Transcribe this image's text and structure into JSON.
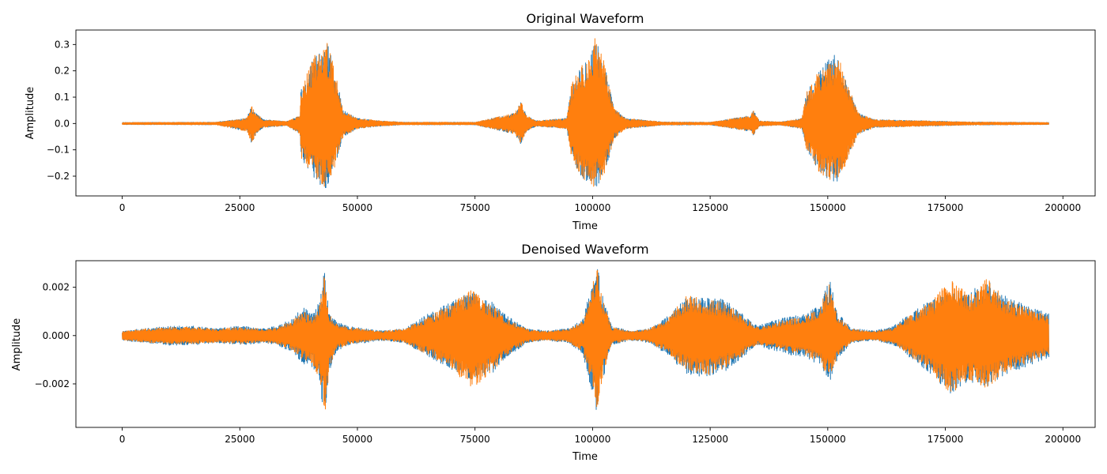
{
  "chart_data": [
    {
      "type": "line",
      "title": "Original Waveform",
      "xlabel": "Time",
      "ylabel": "Amplitude",
      "xlim": [
        -9850,
        206850
      ],
      "ylim": [
        -0.275,
        0.355
      ],
      "xticks": [
        0,
        25000,
        50000,
        75000,
        100000,
        125000,
        150000,
        175000,
        200000
      ],
      "xtick_labels": [
        "0",
        "25000",
        "50000",
        "75000",
        "100000",
        "125000",
        "150000",
        "175000",
        "200000"
      ],
      "yticks": [
        -0.2,
        -0.1,
        0.0,
        0.1,
        0.2,
        0.3
      ],
      "ytick_labels": [
        "−0.2",
        "−0.1",
        "0.0",
        "0.1",
        "0.2",
        "0.3"
      ],
      "grid": false,
      "x_range": [
        0,
        197000
      ],
      "series": [
        {
          "color": "#1f77b4",
          "envelope": {
            "x": [
              0,
              20000,
              26500,
              27500,
              28500,
              30000,
              35000,
              37800,
              38000,
              40500,
              42500,
              43200,
              45000,
              47000,
              50000,
              55000,
              60000,
              75000,
              83500,
              84800,
              86000,
              88000,
              94500,
              95500,
              97500,
              99500,
              100500,
              102500,
              104500,
              107000,
              115000,
              125000,
              133500,
              134200,
              135500,
              140000,
              144500,
              145500,
              148000,
              150500,
              152000,
              154000,
              156500,
              160000,
              180000,
              197000
            ],
            "upper": [
              0.004,
              0.005,
              0.02,
              0.07,
              0.04,
              0.015,
              0.008,
              0.03,
              0.13,
              0.25,
              0.3,
              0.33,
              0.22,
              0.05,
              0.02,
              0.01,
              0.005,
              0.005,
              0.04,
              0.085,
              0.03,
              0.01,
              0.02,
              0.15,
              0.22,
              0.28,
              0.33,
              0.24,
              0.06,
              0.02,
              0.006,
              0.005,
              0.03,
              0.05,
              0.01,
              0.006,
              0.02,
              0.12,
              0.2,
              0.25,
              0.27,
              0.16,
              0.04,
              0.015,
              0.006,
              0.004
            ],
            "lower": [
              -0.004,
              -0.005,
              -0.03,
              -0.075,
              -0.04,
              -0.015,
              -0.008,
              -0.04,
              -0.13,
              -0.2,
              -0.24,
              -0.25,
              -0.18,
              -0.05,
              -0.02,
              -0.01,
              -0.005,
              -0.005,
              -0.04,
              -0.08,
              -0.03,
              -0.01,
              -0.02,
              -0.13,
              -0.2,
              -0.25,
              -0.25,
              -0.2,
              -0.06,
              -0.02,
              -0.006,
              -0.005,
              -0.03,
              -0.045,
              -0.01,
              -0.006,
              -0.02,
              -0.1,
              -0.18,
              -0.22,
              -0.22,
              -0.15,
              -0.04,
              -0.015,
              -0.006,
              -0.004
            ]
          }
        },
        {
          "color": "#ff7f0e",
          "envelope": {
            "x": [
              0,
              20000,
              26500,
              27500,
              28500,
              30000,
              35000,
              37800,
              38000,
              40500,
              42500,
              43200,
              45000,
              47000,
              50000,
              55000,
              60000,
              75000,
              83500,
              84800,
              86000,
              88000,
              94500,
              95500,
              97500,
              99500,
              100500,
              102500,
              104500,
              107000,
              115000,
              125000,
              133500,
              134200,
              135500,
              140000,
              144500,
              145500,
              148000,
              150500,
              152000,
              154000,
              156500,
              160000,
              180000,
              197000
            ],
            "upper": [
              0.004,
              0.005,
              0.02,
              0.07,
              0.04,
              0.015,
              0.008,
              0.03,
              0.13,
              0.25,
              0.3,
              0.33,
              0.22,
              0.05,
              0.02,
              0.01,
              0.005,
              0.005,
              0.04,
              0.085,
              0.03,
              0.01,
              0.02,
              0.15,
              0.22,
              0.28,
              0.33,
              0.24,
              0.06,
              0.02,
              0.006,
              0.005,
              0.03,
              0.05,
              0.01,
              0.006,
              0.02,
              0.12,
              0.2,
              0.25,
              0.27,
              0.16,
              0.04,
              0.015,
              0.006,
              0.004
            ],
            "lower": [
              -0.004,
              -0.005,
              -0.03,
              -0.075,
              -0.04,
              -0.015,
              -0.008,
              -0.04,
              -0.13,
              -0.2,
              -0.24,
              -0.25,
              -0.18,
              -0.05,
              -0.02,
              -0.01,
              -0.005,
              -0.005,
              -0.04,
              -0.08,
              -0.03,
              -0.01,
              -0.02,
              -0.13,
              -0.2,
              -0.25,
              -0.25,
              -0.2,
              -0.06,
              -0.02,
              -0.006,
              -0.005,
              -0.03,
              -0.045,
              -0.01,
              -0.006,
              -0.02,
              -0.1,
              -0.18,
              -0.22,
              -0.22,
              -0.15,
              -0.04,
              -0.015,
              -0.006,
              -0.004
            ]
          }
        }
      ]
    },
    {
      "type": "line",
      "title": "Denoised Waveform",
      "xlabel": "Time",
      "ylabel": "Amplitude",
      "xlim": [
        -9850,
        206850
      ],
      "ylim": [
        -0.0038,
        0.0031
      ],
      "xticks": [
        0,
        25000,
        50000,
        75000,
        100000,
        125000,
        150000,
        175000,
        200000
      ],
      "xtick_labels": [
        "0",
        "25000",
        "50000",
        "75000",
        "100000",
        "125000",
        "150000",
        "175000",
        "200000"
      ],
      "yticks": [
        -0.002,
        0.0,
        0.002
      ],
      "ytick_labels": [
        "−0.002",
        "0.000",
        "0.002"
      ],
      "grid": false,
      "x_range": [
        0,
        197000
      ],
      "series": [
        {
          "color": "#1f77b4",
          "envelope": {
            "x": [
              0,
              5000,
              10000,
              15000,
              20000,
              25000,
              30000,
              33000,
              36000,
              38500,
              40500,
              42000,
              43000,
              44000,
              45500,
              48000,
              55000,
              60000,
              65000,
              70000,
              74000,
              78000,
              82000,
              86000,
              90000,
              95000,
              98000,
              100000,
              101000,
              102000,
              104000,
              108000,
              112000,
              116000,
              120000,
              124000,
              128000,
              132000,
              135000,
              138000,
              142000,
              145000,
              148000,
              150500,
              152000,
              155000,
              160000,
              164000,
              168000,
              172000,
              176000,
              180000,
              184000,
              188000,
              192000,
              197000
            ],
            "upper": [
              0.0002,
              0.0003,
              0.0004,
              0.0004,
              0.0003,
              0.0004,
              0.0003,
              0.0004,
              0.0007,
              0.0012,
              0.0009,
              0.0015,
              0.0029,
              0.001,
              0.0006,
              0.0004,
              0.0002,
              0.0003,
              0.0009,
              0.0014,
              0.0018,
              0.0015,
              0.0008,
              0.0003,
              0.0002,
              0.0003,
              0.0007,
              0.0025,
              0.003,
              0.0018,
              0.0004,
              0.0002,
              0.0003,
              0.0008,
              0.0016,
              0.0016,
              0.0015,
              0.0009,
              0.0004,
              0.0006,
              0.0008,
              0.0009,
              0.0012,
              0.0024,
              0.001,
              0.0003,
              0.0002,
              0.0004,
              0.001,
              0.0015,
              0.0018,
              0.0018,
              0.0023,
              0.0016,
              0.0013,
              0.0009
            ],
            "lower": [
              -0.0002,
              -0.0003,
              -0.0004,
              -0.0004,
              -0.0003,
              -0.0004,
              -0.0003,
              -0.0004,
              -0.0007,
              -0.0012,
              -0.0013,
              -0.002,
              -0.0035,
              -0.0015,
              -0.0007,
              -0.0004,
              -0.0002,
              -0.0003,
              -0.0009,
              -0.0014,
              -0.0018,
              -0.0017,
              -0.0009,
              -0.0003,
              -0.0002,
              -0.0003,
              -0.0008,
              -0.0025,
              -0.0033,
              -0.002,
              -0.0004,
              -0.0002,
              -0.0003,
              -0.0008,
              -0.0016,
              -0.0018,
              -0.0015,
              -0.0009,
              -0.0004,
              -0.0006,
              -0.0008,
              -0.0009,
              -0.0012,
              -0.0019,
              -0.001,
              -0.0003,
              -0.0002,
              -0.0004,
              -0.001,
              -0.0016,
              -0.0024,
              -0.0019,
              -0.0021,
              -0.0016,
              -0.0013,
              -0.0009
            ]
          }
        },
        {
          "color": "#ff7f0e",
          "envelope": {
            "x": [
              0,
              5000,
              10000,
              15000,
              20000,
              25000,
              30000,
              33000,
              36000,
              38500,
              40500,
              42000,
              43000,
              44000,
              45500,
              48000,
              55000,
              60000,
              65000,
              70000,
              74000,
              78000,
              82000,
              86000,
              90000,
              95000,
              98000,
              100000,
              101000,
              102000,
              104000,
              108000,
              112000,
              116000,
              120000,
              124000,
              128000,
              132000,
              135000,
              138000,
              142000,
              145000,
              148000,
              150500,
              152000,
              155000,
              160000,
              164000,
              168000,
              172000,
              176000,
              180000,
              184000,
              188000,
              192000,
              197000
            ],
            "upper": [
              0.00018,
              0.00028,
              0.00035,
              0.00035,
              0.00028,
              0.00035,
              0.00028,
              0.00035,
              0.0006,
              0.001,
              0.0008,
              0.0013,
              0.0028,
              0.0009,
              0.0005,
              0.00035,
              0.00018,
              0.00028,
              0.0008,
              0.0013,
              0.0019,
              0.0014,
              0.0007,
              0.00028,
              0.00018,
              0.00028,
              0.0006,
              0.0023,
              0.0029,
              0.0017,
              0.00035,
              0.00018,
              0.00028,
              0.0007,
              0.0017,
              0.0015,
              0.0014,
              0.0008,
              0.00035,
              0.0005,
              0.0007,
              0.0008,
              0.0011,
              0.0022,
              0.0009,
              0.00028,
              0.00018,
              0.00035,
              0.0009,
              0.0014,
              0.0024,
              0.0017,
              0.0024,
              0.0015,
              0.0012,
              0.0008
            ],
            "lower": [
              -0.00018,
              -0.00028,
              -0.00035,
              -0.00035,
              -0.00028,
              -0.00035,
              -0.00028,
              -0.00035,
              -0.0006,
              -0.001,
              -0.0012,
              -0.0019,
              -0.0035,
              -0.0014,
              -0.0006,
              -0.00035,
              -0.00018,
              -0.00028,
              -0.0008,
              -0.0013,
              -0.0023,
              -0.0016,
              -0.0008,
              -0.00028,
              -0.00018,
              -0.00028,
              -0.0007,
              -0.0023,
              -0.0033,
              -0.0019,
              -0.00035,
              -0.00018,
              -0.00028,
              -0.0007,
              -0.0015,
              -0.0017,
              -0.0014,
              -0.0008,
              -0.00035,
              -0.0005,
              -0.0007,
              -0.0008,
              -0.0011,
              -0.0018,
              -0.0009,
              -0.00028,
              -0.00018,
              -0.00035,
              -0.0009,
              -0.0015,
              -0.0025,
              -0.0018,
              -0.0022,
              -0.0015,
              -0.0012,
              -0.0008
            ]
          }
        }
      ]
    }
  ]
}
